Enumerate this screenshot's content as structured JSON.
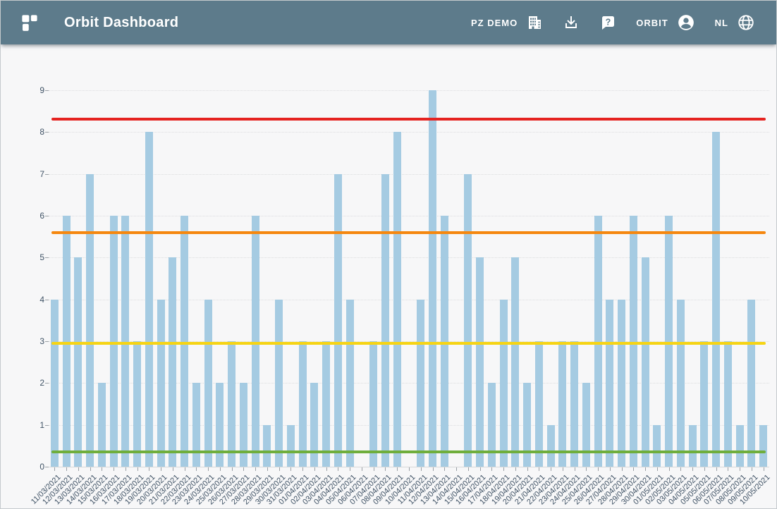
{
  "header": {
    "title": "Orbit Dashboard",
    "tenant_label": "PZ DEMO",
    "user_label": "ORBIT",
    "language_label": "NL",
    "background_color": "#5d7b8b"
  },
  "chart_data": {
    "type": "bar",
    "title": "",
    "xlabel": "",
    "ylabel": "",
    "grid": true,
    "legend": "none",
    "bar_color": "#a5cbe2",
    "ylim": [
      0,
      9.25
    ],
    "yticks": [
      0,
      1,
      2,
      3,
      4,
      5,
      6,
      7,
      8,
      9
    ],
    "x": [
      "11/03/2021",
      "12/03/2021",
      "13/03/2021",
      "14/03/2021",
      "15/03/2021",
      "16/03/2021",
      "17/03/2021",
      "18/03/2021",
      "19/03/2021",
      "20/03/2021",
      "21/03/2021",
      "22/03/2021",
      "23/03/2021",
      "24/03/2021",
      "25/03/2021",
      "26/03/2021",
      "27/03/2021",
      "28/03/2021",
      "29/03/2021",
      "30/03/2021",
      "31/03/2021",
      "01/04/2021",
      "02/04/2021",
      "03/04/2021",
      "04/04/2021",
      "05/04/2021",
      "06/04/2021",
      "07/04/2021",
      "08/04/2021",
      "09/04/2021",
      "10/04/2021",
      "11/04/2021",
      "12/04/2021",
      "13/04/2021",
      "14/04/2021",
      "15/04/2021",
      "16/04/2021",
      "17/04/2021",
      "18/04/2021",
      "19/04/2021",
      "20/04/2021",
      "21/04/2021",
      "22/04/2021",
      "23/04/2021",
      "24/04/2021",
      "25/04/2021",
      "26/04/2021",
      "27/04/2021",
      "28/04/2021",
      "29/04/2021",
      "30/04/2021",
      "01/05/2021",
      "02/05/2021",
      "03/05/2021",
      "04/05/2021",
      "05/05/2021",
      "06/05/2021",
      "07/05/2021",
      "08/05/2021",
      "09/05/2021",
      "10/05/2021"
    ],
    "values": [
      4,
      6,
      5,
      7,
      2,
      6,
      6,
      3,
      8,
      4,
      5,
      6,
      2,
      4,
      2,
      3,
      2,
      6,
      1,
      4,
      1,
      3,
      2,
      3,
      7,
      4,
      0,
      3,
      7,
      8,
      0,
      4,
      9,
      6,
      0,
      7,
      5,
      2,
      4,
      5,
      2,
      3,
      1,
      3,
      3,
      2,
      6,
      4,
      4,
      6,
      5,
      1,
      6,
      4,
      1,
      3,
      8,
      3,
      1,
      4,
      1
    ],
    "reference_lines": [
      {
        "name": "red-threshold",
        "value": 8.3,
        "color": "#e52320"
      },
      {
        "name": "orange-threshold",
        "value": 5.6,
        "color": "#f5870f"
      },
      {
        "name": "yellow-threshold",
        "value": 2.95,
        "color": "#f6d414"
      },
      {
        "name": "green-threshold",
        "value": 0.35,
        "color": "#6fae3c"
      }
    ]
  }
}
